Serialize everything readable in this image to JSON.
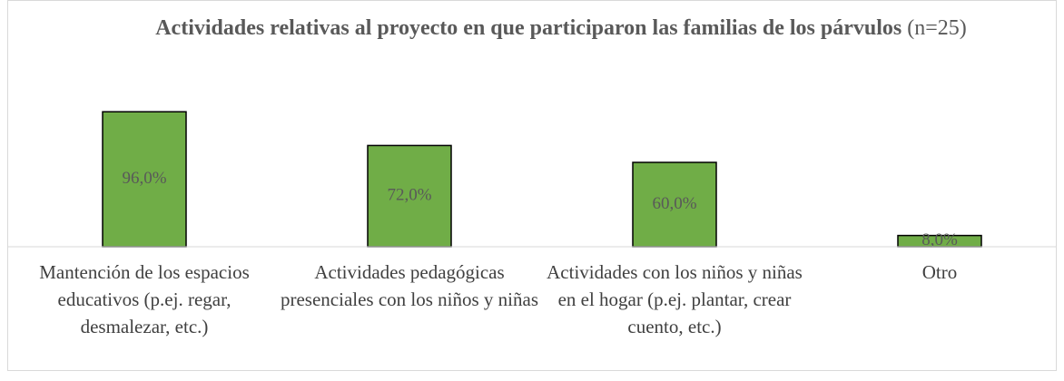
{
  "chart_data": {
    "type": "bar",
    "title": "Actividades relativas al proyecto en que participaron las familias de los párvulos",
    "subtitle": "(n=25)",
    "categories": [
      "Mantención de los espacios educativos (p.ej. regar, desmalezar, etc.)",
      "Actividades pedagógicas presenciales con los niños y niñas",
      "Actividades con los niños y niñas en el hogar (p.ej. plantar, crear cuento, etc.)",
      "Otro"
    ],
    "values": [
      96,
      72,
      60,
      8
    ],
    "value_labels": [
      "96,0%",
      "72,0%",
      "60,0%",
      "8,0%"
    ],
    "color": "#70ad47",
    "ylim": [
      0,
      100
    ]
  }
}
